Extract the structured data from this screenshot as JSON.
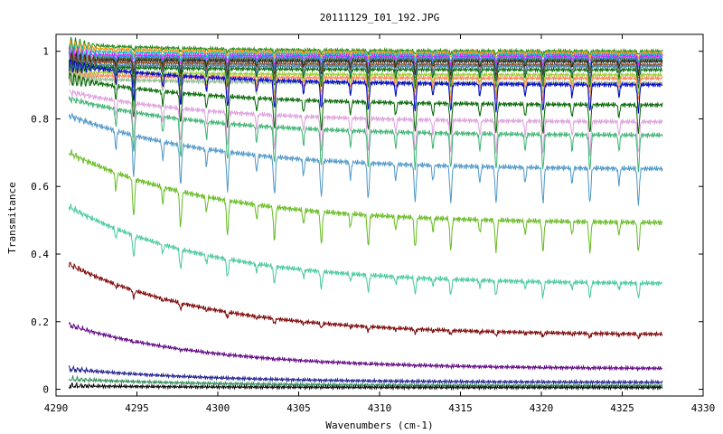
{
  "chart_data": {
    "type": "line",
    "title": "20111129_I01_192.JPG",
    "xlabel": "Wavenumbers (cm-1)",
    "ylabel": "Transmitance",
    "xlim": [
      4290,
      4330
    ],
    "ylim": [
      -0.02,
      1.05
    ],
    "xticks": [
      4290,
      4295,
      4300,
      4305,
      4310,
      4315,
      4320,
      4325,
      4330
    ],
    "yticks": [
      0,
      0.2,
      0.4,
      0.6,
      0.8,
      1
    ],
    "ytick_labels": [
      "0",
      "0.2",
      "0.4",
      "0.6",
      "0.8",
      "1"
    ],
    "grid": false,
    "legend": "none",
    "x_range_data": [
      4290.8,
      4327.5
    ],
    "strong_lines": [
      4294.8,
      4297.7,
      4300.6,
      4303.5,
      4306.4,
      4309.3,
      4312.2,
      4314.4,
      4317.2,
      4320.1,
      4323.0,
      4326.0
    ],
    "weak_lines": [
      4293.7,
      4296.6,
      4299.3,
      4302.4,
      4305.3,
      4308.2,
      4311.0,
      4313.3,
      4316.2,
      4319.0,
      4321.9,
      4324.8
    ],
    "series": [
      {
        "start": 1.02,
        "end": 1.0,
        "depth": 0.01,
        "color": "#1a8a1a"
      },
      {
        "start": 1.01,
        "end": 0.995,
        "depth": 0.015,
        "color": "#ff8c00"
      },
      {
        "start": 1.0,
        "end": 0.99,
        "depth": 0.02,
        "color": "#00bfbf"
      },
      {
        "start": 0.99,
        "end": 0.985,
        "depth": 0.025,
        "color": "#ff00ff"
      },
      {
        "start": 0.985,
        "end": 0.98,
        "depth": 0.03,
        "color": "#1e90ff"
      },
      {
        "start": 0.98,
        "end": 0.975,
        "depth": 0.035,
        "color": "#556b2f"
      },
      {
        "start": 0.975,
        "end": 0.97,
        "depth": 0.04,
        "color": "#222222"
      },
      {
        "start": 0.97,
        "end": 0.96,
        "depth": 0.045,
        "color": "#8b4513"
      },
      {
        "start": 0.96,
        "end": 0.955,
        "depth": 0.05,
        "color": "#4682b4"
      },
      {
        "start": 0.955,
        "end": 0.945,
        "depth": 0.055,
        "color": "#006400"
      },
      {
        "start": 0.94,
        "end": 0.93,
        "depth": 0.06,
        "color": "#9acd32"
      },
      {
        "start": 0.93,
        "end": 0.92,
        "depth": 0.07,
        "color": "#ff7f50"
      },
      {
        "start": 0.92,
        "end": 0.905,
        "depth": 0.08,
        "color": "#8fbc8f"
      },
      {
        "start": 0.96,
        "end": 0.9,
        "depth": 0.09,
        "color": "#0000cd"
      },
      {
        "start": 0.92,
        "end": 0.84,
        "depth": 0.1,
        "color": "#006400"
      },
      {
        "start": 0.88,
        "end": 0.79,
        "depth": 0.12,
        "color": "#dda0dd"
      },
      {
        "start": 0.86,
        "end": 0.75,
        "depth": 0.14,
        "color": "#3cb371"
      },
      {
        "start": 0.81,
        "end": 0.65,
        "depth": 0.16,
        "color": "#4f97c8"
      },
      {
        "start": 0.7,
        "end": 0.49,
        "depth": 0.18,
        "color": "#66bb22"
      },
      {
        "start": 0.54,
        "end": 0.31,
        "depth": 0.14,
        "color": "#48c89c"
      },
      {
        "start": 0.37,
        "end": 0.16,
        "depth": 0.07,
        "color": "#7a0000"
      },
      {
        "start": 0.19,
        "end": 0.06,
        "depth": 0.03,
        "color": "#5c0080"
      },
      {
        "start": 0.06,
        "end": 0.02,
        "depth": 0.01,
        "color": "#1a1a8c"
      },
      {
        "start": 0.03,
        "end": 0.01,
        "depth": 0.005,
        "color": "#2e8b57"
      },
      {
        "start": 0.01,
        "end": 0.005,
        "depth": 0.003,
        "color": "#000000"
      }
    ]
  }
}
